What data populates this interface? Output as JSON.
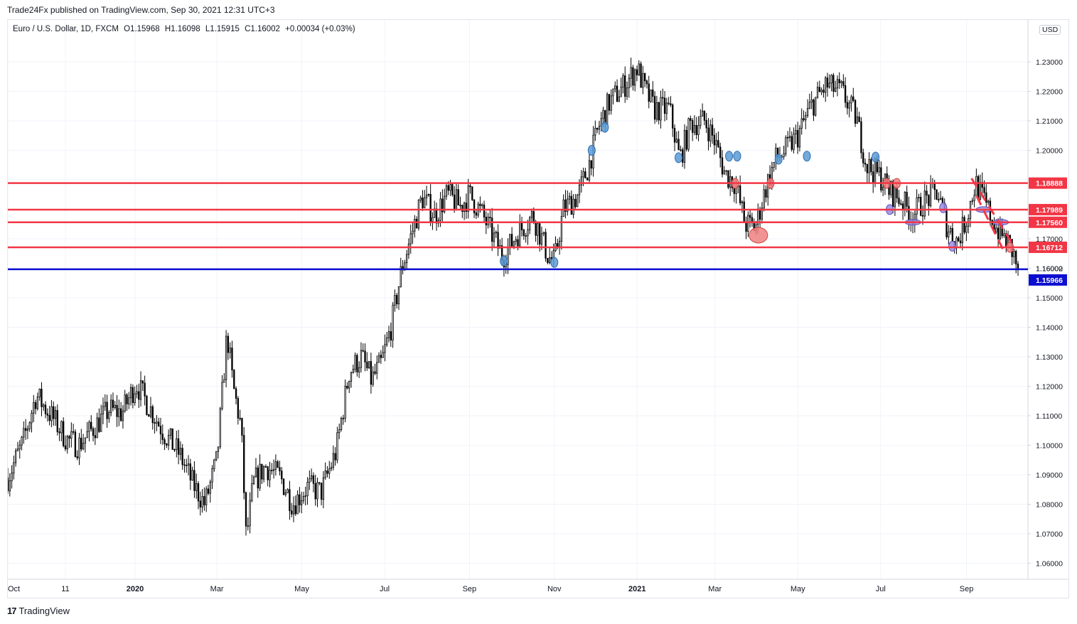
{
  "header": {
    "published_text": "Trade24Fx published on TradingView.com, Sep 30, 2021 12:31 UTC+3"
  },
  "legend": {
    "symbol": "Euro / U.S. Dollar, 1D, FXCM",
    "open": "O1.15968",
    "high": "H1.16098",
    "low": "L1.15915",
    "close": "C1.16002",
    "change": "+0.00034 (+0.03%)"
  },
  "currency_label": "USD",
  "footer": {
    "logo": "TradingView",
    "logo_mark": "17"
  },
  "colors": {
    "line": "#f23645",
    "blue_line": "#0c0ecf",
    "marker_blue": "#5b9bd5",
    "marker_red": "#f08080",
    "marker_purple": "#9b8fe0"
  },
  "chart_data": {
    "type": "candlestick",
    "symbol": "EURUSD",
    "timeframe": "1D",
    "ylim": [
      1.055,
      1.2385
    ],
    "y_ticks": [
      "1.23000",
      "1.22000",
      "1.21000",
      "1.20000",
      "1.19000",
      "1.18000",
      "1.17000",
      "1.16000",
      "1.15000",
      "1.14000",
      "1.13000",
      "1.12000",
      "1.11000",
      "1.10000",
      "1.09000",
      "1.08000",
      "1.07000",
      "1.06000"
    ],
    "x_ticks": [
      {
        "label": "Oct",
        "t": 0,
        "bold": false
      },
      {
        "label": "11",
        "t": 0.057,
        "bold": false
      },
      {
        "label": "2020",
        "t": 0.126,
        "bold": true
      },
      {
        "label": "Mar",
        "t": 0.207,
        "bold": false
      },
      {
        "label": "May",
        "t": 0.291,
        "bold": false
      },
      {
        "label": "Jul",
        "t": 0.373,
        "bold": false
      },
      {
        "label": "Sep",
        "t": 0.457,
        "bold": false
      },
      {
        "label": "Nov",
        "t": 0.541,
        "bold": false
      },
      {
        "label": "2021",
        "t": 0.623,
        "bold": true
      },
      {
        "label": "Mar",
        "t": 0.7,
        "bold": false
      },
      {
        "label": "May",
        "t": 0.782,
        "bold": false
      },
      {
        "label": "Jul",
        "t": 0.864,
        "bold": false
      },
      {
        "label": "Sep",
        "t": 0.949,
        "bold": false
      }
    ],
    "anchors": [
      [
        0,
        1.089
      ],
      [
        0.015,
        1.101
      ],
      [
        0.028,
        1.117
      ],
      [
        0.045,
        1.109
      ],
      [
        0.058,
        1.102
      ],
      [
        0.07,
        1.1
      ],
      [
        0.085,
        1.106
      ],
      [
        0.1,
        1.112
      ],
      [
        0.113,
        1.111
      ],
      [
        0.127,
        1.121
      ],
      [
        0.14,
        1.113
      ],
      [
        0.155,
        1.104
      ],
      [
        0.17,
        1.097
      ],
      [
        0.183,
        1.087
      ],
      [
        0.195,
        1.08
      ],
      [
        0.207,
        1.095
      ],
      [
        0.217,
        1.138
      ],
      [
        0.223,
        1.12
      ],
      [
        0.231,
        1.106
      ],
      [
        0.236,
        1.068
      ],
      [
        0.243,
        1.087
      ],
      [
        0.255,
        1.093
      ],
      [
        0.27,
        1.089
      ],
      [
        0.282,
        1.08
      ],
      [
        0.297,
        1.086
      ],
      [
        0.31,
        1.084
      ],
      [
        0.325,
        1.098
      ],
      [
        0.338,
        1.125
      ],
      [
        0.35,
        1.13
      ],
      [
        0.36,
        1.122
      ],
      [
        0.37,
        1.128
      ],
      [
        0.38,
        1.141
      ],
      [
        0.39,
        1.16
      ],
      [
        0.4,
        1.172
      ],
      [
        0.41,
        1.184
      ],
      [
        0.423,
        1.178
      ],
      [
        0.435,
        1.185
      ],
      [
        0.448,
        1.181
      ],
      [
        0.457,
        1.185
      ],
      [
        0.47,
        1.178
      ],
      [
        0.49,
        1.164
      ],
      [
        0.505,
        1.172
      ],
      [
        0.52,
        1.178
      ],
      [
        0.535,
        1.164
      ],
      [
        0.541,
        1.162
      ],
      [
        0.55,
        1.18
      ],
      [
        0.565,
        1.185
      ],
      [
        0.575,
        1.195
      ],
      [
        0.585,
        1.208
      ],
      [
        0.595,
        1.216
      ],
      [
        0.61,
        1.222
      ],
      [
        0.623,
        1.228
      ],
      [
        0.63,
        1.221
      ],
      [
        0.64,
        1.214
      ],
      [
        0.655,
        1.214
      ],
      [
        0.665,
        1.197
      ],
      [
        0.676,
        1.209
      ],
      [
        0.69,
        1.21
      ],
      [
        0.7,
        1.203
      ],
      [
        0.71,
        1.192
      ],
      [
        0.72,
        1.189
      ],
      [
        0.73,
        1.175
      ],
      [
        0.74,
        1.174
      ],
      [
        0.75,
        1.187
      ],
      [
        0.76,
        1.197
      ],
      [
        0.77,
        1.2
      ],
      [
        0.782,
        1.205
      ],
      [
        0.795,
        1.215
      ],
      [
        0.81,
        1.222
      ],
      [
        0.825,
        1.22
      ],
      [
        0.84,
        1.211
      ],
      [
        0.85,
        1.195
      ],
      [
        0.864,
        1.191
      ],
      [
        0.873,
        1.186
      ],
      [
        0.885,
        1.183
      ],
      [
        0.895,
        1.178
      ],
      [
        0.908,
        1.183
      ],
      [
        0.92,
        1.186
      ],
      [
        0.93,
        1.174
      ],
      [
        0.94,
        1.169
      ],
      [
        0.949,
        1.177
      ],
      [
        0.958,
        1.189
      ],
      [
        0.97,
        1.18
      ],
      [
        0.978,
        1.174
      ],
      [
        0.987,
        1.17
      ],
      [
        0.993,
        1.167
      ],
      [
        1.0,
        1.16
      ]
    ],
    "horizontal_lines": [
      {
        "price": 1.18888,
        "label": "1.18888",
        "color": "#f23645"
      },
      {
        "price": 1.17989,
        "label": "1.17989",
        "color": "#f23645"
      },
      {
        "price": 1.1756,
        "label": "1.17560",
        "color": "#f23645"
      },
      {
        "price": 1.16712,
        "label": "1.16712",
        "color": "#f23645"
      },
      {
        "price": 1.15966,
        "label": "1.15966",
        "color": "#0c0ecf"
      }
    ],
    "last_price": {
      "price": 1.16002,
      "label": "1.16002"
    },
    "markers": [
      {
        "t": 0.491,
        "price": 1.1625,
        "color": "blue",
        "size": "s"
      },
      {
        "t": 0.541,
        "price": 1.162,
        "color": "blue",
        "size": "s"
      },
      {
        "t": 0.578,
        "price": 1.2,
        "color": "blue",
        "size": "s"
      },
      {
        "t": 0.591,
        "price": 1.2078,
        "color": "blue",
        "size": "s"
      },
      {
        "t": 0.664,
        "price": 1.1975,
        "color": "blue",
        "size": "s"
      },
      {
        "t": 0.714,
        "price": 1.198,
        "color": "blue",
        "size": "s"
      },
      {
        "t": 0.722,
        "price": 1.198,
        "color": "blue",
        "size": "s"
      },
      {
        "t": 0.72,
        "price": 1.1888,
        "color": "red",
        "size": "s"
      },
      {
        "t": 0.743,
        "price": 1.1712,
        "color": "red",
        "size": "l"
      },
      {
        "t": 0.755,
        "price": 1.1888,
        "color": "red",
        "size": "s"
      },
      {
        "t": 0.763,
        "price": 1.197,
        "color": "blue",
        "size": "s"
      },
      {
        "t": 0.791,
        "price": 1.198,
        "color": "blue",
        "size": "s"
      },
      {
        "t": 0.859,
        "price": 1.1977,
        "color": "blue",
        "size": "s"
      },
      {
        "t": 0.87,
        "price": 1.1888,
        "color": "red",
        "size": "s"
      },
      {
        "t": 0.88,
        "price": 1.1888,
        "color": "red",
        "size": "s"
      },
      {
        "t": 0.873,
        "price": 1.1799,
        "color": "purple",
        "size": "s"
      },
      {
        "t": 0.896,
        "price": 1.1756,
        "color": "purple",
        "size": "w"
      },
      {
        "t": 0.926,
        "price": 1.1805,
        "color": "purple",
        "size": "s"
      },
      {
        "t": 0.935,
        "price": 1.1675,
        "color": "purple",
        "size": "s"
      },
      {
        "t": 0.966,
        "price": 1.1799,
        "color": "purple",
        "size": "w"
      },
      {
        "t": 0.983,
        "price": 1.1756,
        "color": "purple",
        "size": "w"
      },
      {
        "t": 0.992,
        "price": 1.1671,
        "color": "red",
        "size": "s"
      }
    ],
    "trend_lines": [
      {
        "t1": 0.954,
        "p1": 1.1905,
        "t2": 0.995,
        "p2": 1.168,
        "dashed": true
      },
      {
        "t1": 0.959,
        "p1": 1.1845,
        "t2": 0.985,
        "p2": 1.1665,
        "dashed": true
      }
    ]
  }
}
